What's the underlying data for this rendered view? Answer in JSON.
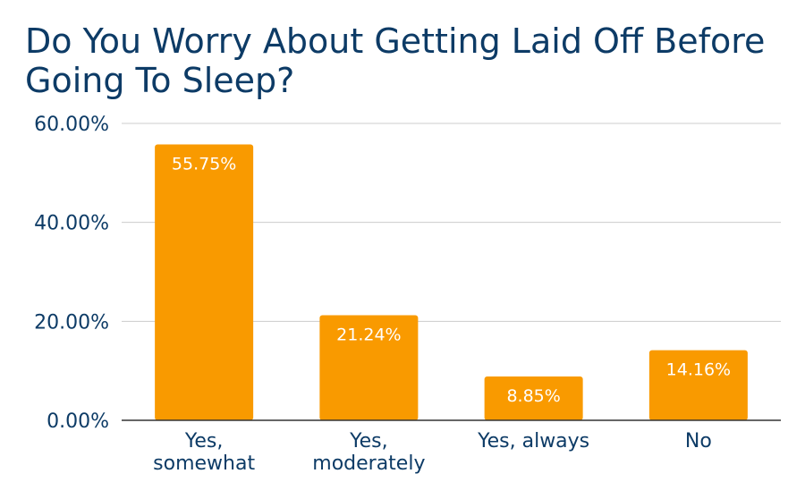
{
  "chart_data": {
    "type": "bar",
    "title": "Do You Worry About Getting Laid Off Before Going To Sleep?",
    "xlabel": "",
    "ylabel": "",
    "categories": [
      [
        "Yes,",
        "somewhat"
      ],
      [
        "Yes,",
        "moderately"
      ],
      [
        "Yes, always"
      ],
      [
        "No"
      ]
    ],
    "values": [
      55.75,
      21.24,
      8.85,
      14.16
    ],
    "data_labels": [
      "55.75%",
      "21.24%",
      "8.85%",
      "14.16%"
    ],
    "yticks": [
      0,
      20,
      40,
      60
    ],
    "ytick_labels": [
      "0.00%",
      "20.00%",
      "40.00%",
      "60.00%"
    ],
    "ylim": [
      0,
      60
    ],
    "grid": true,
    "legend": "none",
    "colors": {
      "bar": "#f99a00",
      "title": "#0d3b66",
      "axis_text": "#0d3b66",
      "data_label": "#ffffff",
      "grid": "#cccccc",
      "baseline": "#333333"
    }
  }
}
